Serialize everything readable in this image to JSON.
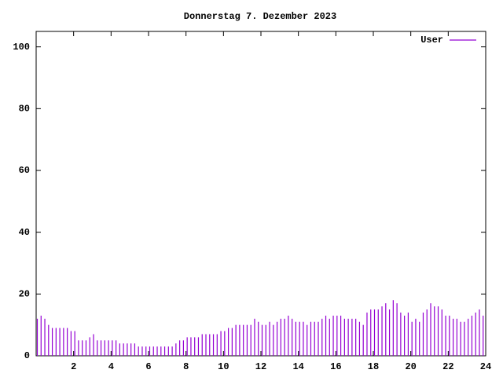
{
  "chart_data": {
    "type": "impulses",
    "title": "Donnerstag 7. Dezember 2023",
    "x": [
      0,
      0.2,
      0.4,
      0.6,
      0.8,
      1,
      1.2,
      1.4,
      1.6,
      1.8,
      2,
      2.2,
      2.4,
      2.6,
      2.8,
      3,
      3.2,
      3.4,
      3.6,
      3.8,
      4,
      4.2,
      4.4,
      4.6,
      4.8,
      5,
      5.2,
      5.4,
      5.6,
      5.8,
      6,
      6.2,
      6.4,
      6.6,
      6.8,
      7,
      7.2,
      7.4,
      7.6,
      7.8,
      8,
      8.2,
      8.4,
      8.6,
      8.8,
      9,
      9.2,
      9.4,
      9.6,
      9.8,
      10,
      10.2,
      10.4,
      10.6,
      10.8,
      11,
      11.2,
      11.4,
      11.6,
      11.8,
      12,
      12.2,
      12.4,
      12.6,
      12.8,
      13,
      13.2,
      13.4,
      13.6,
      13.8,
      14,
      14.2,
      14.4,
      14.6,
      14.8,
      15,
      15.2,
      15.4,
      15.6,
      15.8,
      16,
      16.2,
      16.4,
      16.6,
      16.8,
      17,
      17.2,
      17.4,
      17.6,
      17.8,
      18,
      18.2,
      18.4,
      18.6,
      18.8,
      19,
      19.2,
      19.4,
      19.6,
      19.8,
      20,
      20.2,
      20.4,
      20.6,
      20.8,
      21,
      21.2,
      21.4,
      21.6,
      21.8,
      22,
      22.2,
      22.4,
      22.6,
      22.8,
      23,
      23.2,
      23.4,
      23.6,
      23.8
    ],
    "series": [
      {
        "name": "User",
        "color": "#9400d3",
        "values": [
          12,
          13,
          12,
          10,
          9,
          9,
          9,
          9,
          9,
          8,
          8,
          5,
          5,
          5,
          6,
          7,
          5,
          5,
          5,
          5,
          5,
          5,
          4,
          4,
          4,
          4,
          4,
          3,
          3,
          3,
          3,
          3,
          3,
          3,
          3,
          3,
          3,
          4,
          5,
          5,
          6,
          6,
          6,
          6,
          7,
          7,
          7,
          7,
          7,
          8,
          8,
          9,
          9,
          10,
          10,
          10,
          10,
          10,
          12,
          11,
          10,
          10,
          11,
          10,
          11,
          12,
          12,
          13,
          12,
          11,
          11,
          11,
          10,
          11,
          11,
          11,
          12,
          13,
          12,
          13,
          13,
          13,
          12,
          12,
          12,
          12,
          11,
          10,
          14,
          15,
          15,
          15,
          16,
          17,
          15,
          18,
          17,
          14,
          13,
          14,
          11,
          12,
          11,
          14,
          15,
          17,
          16,
          16,
          15,
          13,
          13,
          12,
          12,
          11,
          11,
          12,
          13,
          14,
          15,
          13
        ]
      }
    ],
    "xlim": [
      0,
      24
    ],
    "xticks": [
      2,
      4,
      6,
      8,
      10,
      12,
      14,
      16,
      18,
      20,
      22,
      24
    ],
    "ylim": [
      0,
      105
    ],
    "yticks": [
      0,
      20,
      40,
      60,
      80,
      100
    ],
    "legend": "top-right"
  }
}
